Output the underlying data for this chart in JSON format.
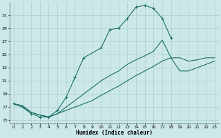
{
  "xlabel": "Humidex (Indice chaleur)",
  "bg_color": "#cce8e8",
  "grid_color": "#aacfcf",
  "line_color": "#1a6e64",
  "xlim": [
    -0.5,
    23.5
  ],
  "ylim": [
    14.5,
    33.0
  ],
  "xticks": [
    0,
    1,
    2,
    3,
    4,
    5,
    6,
    7,
    8,
    9,
    10,
    11,
    12,
    13,
    14,
    15,
    16,
    17,
    18,
    19,
    20,
    21,
    22,
    23
  ],
  "yticks": [
    15,
    17,
    19,
    21,
    23,
    25,
    27,
    29,
    31
  ],
  "curve1_x": [
    0,
    1,
    2,
    3,
    4,
    5,
    6,
    7,
    8,
    10,
    11,
    12,
    13,
    14,
    15,
    16,
    17,
    18
  ],
  "curve1_y": [
    17.5,
    17.0,
    16.0,
    15.5,
    15.5,
    16.5,
    18.5,
    21.5,
    24.5,
    26.0,
    28.8,
    29.0,
    30.5,
    32.2,
    32.5,
    32.0,
    30.5,
    27.5
  ],
  "curve2_x": [
    0,
    1,
    2,
    3,
    4,
    5,
    6,
    7,
    8,
    9,
    10,
    11,
    12,
    13,
    14,
    15,
    16,
    17,
    18,
    19,
    20,
    21,
    22,
    23
  ],
  "curve2_y": [
    17.5,
    17.2,
    16.2,
    15.8,
    15.5,
    16.0,
    17.0,
    18.0,
    19.0,
    20.0,
    21.0,
    21.8,
    22.5,
    23.5,
    24.2,
    24.8,
    25.5,
    27.2,
    24.5,
    24.5,
    24.0,
    24.2,
    24.5,
    24.5
  ],
  "curve3_x": [
    0,
    1,
    2,
    3,
    4,
    5,
    6,
    7,
    8,
    9,
    10,
    11,
    12,
    13,
    14,
    15,
    16,
    17,
    18,
    19,
    20,
    21,
    22,
    23
  ],
  "curve3_y": [
    17.5,
    17.2,
    16.2,
    15.8,
    15.5,
    16.0,
    16.5,
    17.0,
    17.5,
    18.0,
    18.8,
    19.5,
    20.2,
    21.0,
    21.8,
    22.5,
    23.2,
    24.0,
    24.5,
    22.5,
    22.5,
    23.0,
    23.5,
    24.0
  ]
}
